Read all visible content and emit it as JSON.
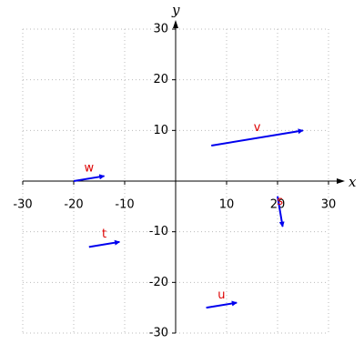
{
  "chart_data": {
    "type": "vector",
    "x_label": "x",
    "y_label": "y",
    "xlim": [
      -30,
      30
    ],
    "ylim": [
      -30,
      30
    ],
    "xticks": [
      -30,
      -20,
      -10,
      10,
      20,
      30
    ],
    "yticks": [
      -30,
      -20,
      -10,
      10,
      20,
      30
    ],
    "grid": true,
    "color": "#0000ee",
    "label_color": "#dd0000",
    "vectors": [
      {
        "name": "v",
        "tail": [
          7,
          7
        ],
        "head": [
          25,
          10
        ]
      },
      {
        "name": "w",
        "tail": [
          -20,
          0
        ],
        "head": [
          -14,
          1
        ]
      },
      {
        "name": "t",
        "tail": [
          -17,
          -13
        ],
        "head": [
          -11,
          -12
        ]
      },
      {
        "name": "u",
        "tail": [
          6,
          -25
        ],
        "head": [
          12,
          -24
        ]
      },
      {
        "name": "s",
        "tail": [
          20,
          -3
        ],
        "head": [
          21,
          -9
        ]
      }
    ]
  }
}
